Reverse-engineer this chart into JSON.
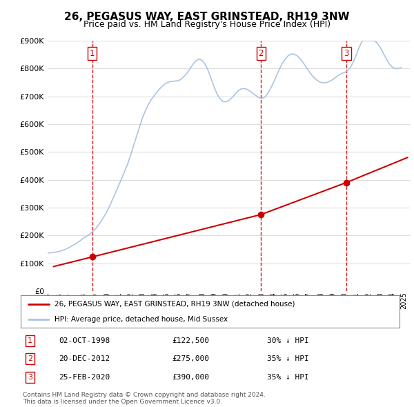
{
  "title": "26, PEGASUS WAY, EAST GRINSTEAD, RH19 3NW",
  "subtitle": "Price paid vs. HM Land Registry's House Price Index (HPI)",
  "hpi_label": "HPI: Average price, detached house, Mid Sussex",
  "price_label": "26, PEGASUS WAY, EAST GRINSTEAD, RH19 3NW (detached house)",
  "hpi_color": "#aac4e0",
  "price_color": "#cc0000",
  "vline_color": "#cc0000",
  "background_color": "#ffffff",
  "grid_color": "#dddddd",
  "ylim": [
    0,
    900000
  ],
  "yticks": [
    0,
    100000,
    200000,
    300000,
    400000,
    500000,
    600000,
    700000,
    800000,
    900000
  ],
  "xlim_start": 1995.0,
  "xlim_end": 2025.5,
  "transactions": [
    {
      "number": 1,
      "date": "02-OCT-1998",
      "price": 122500,
      "pct": "30%",
      "direction": "↓",
      "year": 1998.75
    },
    {
      "number": 2,
      "date": "20-DEC-2012",
      "price": 275000,
      "pct": "35%",
      "direction": "↓",
      "year": 2012.97
    },
    {
      "number": 3,
      "date": "25-FEB-2020",
      "price": 390000,
      "pct": "35%",
      "direction": "↓",
      "year": 2020.15
    }
  ],
  "footnote1": "Contains HM Land Registry data © Crown copyright and database right 2024.",
  "footnote2": "This data is licensed under the Open Government Licence v3.0.",
  "hpi_data": [
    [
      1995.0,
      136000
    ],
    [
      1995.25,
      137500
    ],
    [
      1995.5,
      138500
    ],
    [
      1995.75,
      140000
    ],
    [
      1996.0,
      143000
    ],
    [
      1996.25,
      146000
    ],
    [
      1996.5,
      150000
    ],
    [
      1996.75,
      155000
    ],
    [
      1997.0,
      161000
    ],
    [
      1997.25,
      167000
    ],
    [
      1997.5,
      174000
    ],
    [
      1997.75,
      181000
    ],
    [
      1998.0,
      190000
    ],
    [
      1998.25,
      196000
    ],
    [
      1998.5,
      203000
    ],
    [
      1998.75,
      212000
    ],
    [
      1999.0,
      222000
    ],
    [
      1999.25,
      235000
    ],
    [
      1999.5,
      251000
    ],
    [
      1999.75,
      268000
    ],
    [
      2000.0,
      286000
    ],
    [
      2000.25,
      308000
    ],
    [
      2000.5,
      332000
    ],
    [
      2000.75,
      356000
    ],
    [
      2001.0,
      381000
    ],
    [
      2001.25,
      406000
    ],
    [
      2001.5,
      432000
    ],
    [
      2001.75,
      458000
    ],
    [
      2002.0,
      490000
    ],
    [
      2002.25,
      524000
    ],
    [
      2002.5,
      558000
    ],
    [
      2002.75,
      592000
    ],
    [
      2003.0,
      624000
    ],
    [
      2003.25,
      650000
    ],
    [
      2003.5,
      672000
    ],
    [
      2003.75,
      690000
    ],
    [
      2004.0,
      703000
    ],
    [
      2004.25,
      718000
    ],
    [
      2004.5,
      730000
    ],
    [
      2004.75,
      740000
    ],
    [
      2005.0,
      748000
    ],
    [
      2005.25,
      752000
    ],
    [
      2005.5,
      754000
    ],
    [
      2005.75,
      755000
    ],
    [
      2006.0,
      756000
    ],
    [
      2006.25,
      762000
    ],
    [
      2006.5,
      772000
    ],
    [
      2006.75,
      784000
    ],
    [
      2007.0,
      800000
    ],
    [
      2007.25,
      816000
    ],
    [
      2007.5,
      828000
    ],
    [
      2007.75,
      834000
    ],
    [
      2008.0,
      830000
    ],
    [
      2008.25,
      816000
    ],
    [
      2008.5,
      794000
    ],
    [
      2008.75,
      766000
    ],
    [
      2009.0,
      736000
    ],
    [
      2009.25,
      710000
    ],
    [
      2009.5,
      692000
    ],
    [
      2009.75,
      682000
    ],
    [
      2010.0,
      680000
    ],
    [
      2010.25,
      685000
    ],
    [
      2010.5,
      694000
    ],
    [
      2010.75,
      706000
    ],
    [
      2011.0,
      718000
    ],
    [
      2011.25,
      726000
    ],
    [
      2011.5,
      728000
    ],
    [
      2011.75,
      726000
    ],
    [
      2012.0,
      720000
    ],
    [
      2012.25,
      712000
    ],
    [
      2012.5,
      704000
    ],
    [
      2012.75,
      696000
    ],
    [
      2013.0,
      692000
    ],
    [
      2013.25,
      696000
    ],
    [
      2013.5,
      708000
    ],
    [
      2013.75,
      726000
    ],
    [
      2014.0,
      748000
    ],
    [
      2014.25,
      772000
    ],
    [
      2014.5,
      796000
    ],
    [
      2014.75,
      818000
    ],
    [
      2015.0,
      834000
    ],
    [
      2015.25,
      846000
    ],
    [
      2015.5,
      852000
    ],
    [
      2015.75,
      852000
    ],
    [
      2016.0,
      846000
    ],
    [
      2016.25,
      836000
    ],
    [
      2016.5,
      822000
    ],
    [
      2016.75,
      806000
    ],
    [
      2017.0,
      790000
    ],
    [
      2017.25,
      776000
    ],
    [
      2017.5,
      764000
    ],
    [
      2017.75,
      756000
    ],
    [
      2018.0,
      750000
    ],
    [
      2018.25,
      748000
    ],
    [
      2018.5,
      750000
    ],
    [
      2018.75,
      754000
    ],
    [
      2019.0,
      760000
    ],
    [
      2019.25,
      768000
    ],
    [
      2019.5,
      776000
    ],
    [
      2019.75,
      782000
    ],
    [
      2020.0,
      786000
    ],
    [
      2020.25,
      792000
    ],
    [
      2020.5,
      804000
    ],
    [
      2020.75,
      824000
    ],
    [
      2021.0,
      850000
    ],
    [
      2021.25,
      878000
    ],
    [
      2021.5,
      900000
    ],
    [
      2021.75,
      900000
    ],
    [
      2022.0,
      900000
    ],
    [
      2022.25,
      900000
    ],
    [
      2022.5,
      900000
    ],
    [
      2022.75,
      892000
    ],
    [
      2023.0,
      876000
    ],
    [
      2023.25,
      856000
    ],
    [
      2023.5,
      836000
    ],
    [
      2023.75,
      818000
    ],
    [
      2024.0,
      806000
    ],
    [
      2024.25,
      800000
    ],
    [
      2024.5,
      800000
    ],
    [
      2024.75,
      804000
    ]
  ],
  "price_data": [
    [
      1995.5,
      88000
    ],
    [
      1998.75,
      122500
    ],
    [
      2012.97,
      275000
    ],
    [
      2020.15,
      390000
    ],
    [
      2025.3,
      480000
    ]
  ]
}
